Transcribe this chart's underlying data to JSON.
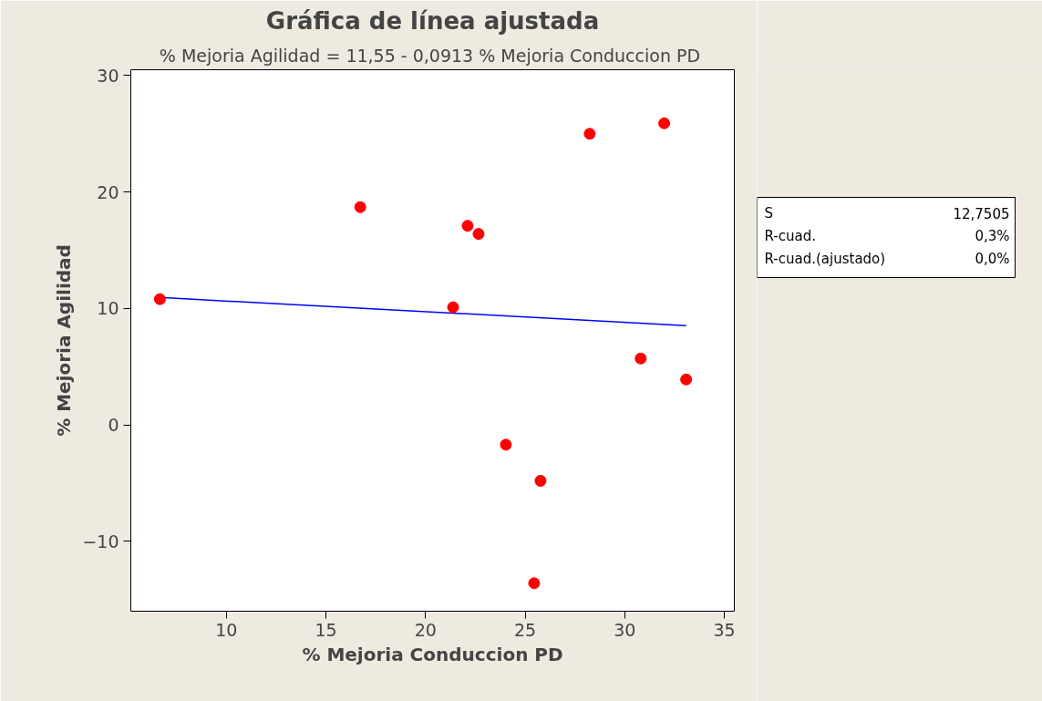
{
  "chart_data": {
    "type": "scatter",
    "title": "Gráfica de línea ajustada",
    "subtitle": "% Mejoria Agilidad =  11,55 - 0,0913 % Mejoria Conduccion PD",
    "xlabel": "% Mejoria Conduccion PD",
    "ylabel": "% Mejoria Agilidad",
    "xlim": [
      5.2,
      35.5
    ],
    "ylim": [
      -16,
      30.5
    ],
    "xticks": [
      10,
      15,
      20,
      25,
      30,
      35
    ],
    "yticks": [
      -10,
      0,
      10,
      20,
      30
    ],
    "annotations": [
      "S",
      "12,7505",
      "R-cuad.",
      "0,3%",
      "R-cuad.(ajustado)",
      "0,0%"
    ],
    "series": [
      {
        "type": "line",
        "color": "#0000ff",
        "x": [
          6.66,
          33.08
        ],
        "values": [
          10.94,
          8.53
        ]
      },
      {
        "color": "#ff0000",
        "marker": "circle",
        "x": [
          6.66,
          16.72,
          21.38,
          22.11,
          22.66,
          24.03,
          25.45,
          25.77,
          28.24,
          30.8,
          31.98,
          33.08
        ],
        "values": [
          10.8,
          18.7,
          10.1,
          17.1,
          16.4,
          -1.7,
          -13.6,
          -4.8,
          25.0,
          5.7,
          25.9,
          3.9
        ]
      }
    ]
  }
}
